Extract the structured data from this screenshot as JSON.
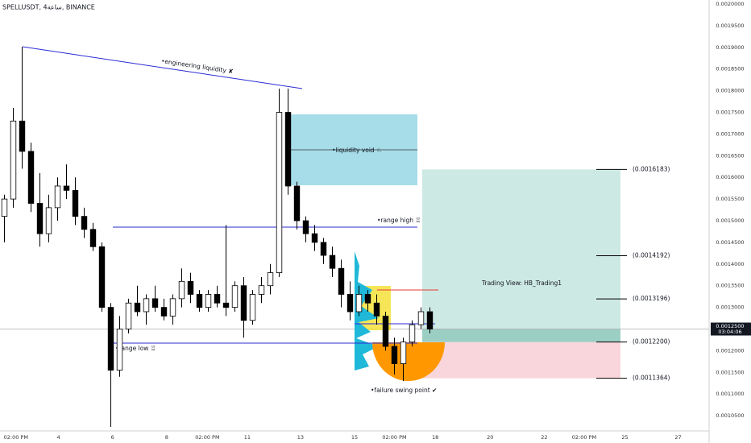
{
  "chart_data": {
    "type": "candlestick",
    "title": "SPELLUSDT, 4ساعة, BINANCE",
    "open": [
      0.00151,
      0.00155,
      0.00173,
      0.00166,
      0.00154,
      0.00147,
      0.00153,
      0.00158,
      0.00157,
      0.00151,
      0.00148,
      0.00144,
      0.0013,
      0.001155,
      0.00125,
      0.00131,
      0.00129,
      0.00132,
      0.0013,
      0.00128,
      0.00132,
      0.00136,
      0.00133,
      0.0013,
      0.00133,
      0.00131,
      0.0013,
      0.00135,
      0.00127,
      0.00133,
      0.00135,
      0.00138,
      0.00175,
      0.00158,
      0.0015,
      0.00147,
      0.00145,
      0.00142,
      0.00139,
      0.00133,
      0.00129,
      0.00133,
      0.00131,
      0.00128,
      0.00121,
      0.00117,
      0.00122,
      0.00126,
      0.00129
    ],
    "high": [
      0.00156,
      0.00176,
      0.0019015,
      0.00168,
      0.00161,
      0.00156,
      0.0016,
      0.00163,
      0.0016,
      0.00153,
      0.001495,
      0.00145,
      0.00131,
      0.00128,
      0.00132,
      0.00135,
      0.00133,
      0.00135,
      0.00132,
      0.00133,
      0.00139,
      0.00138,
      0.00134,
      0.00134,
      0.00135,
      0.00149,
      0.00136,
      0.00137,
      0.00134,
      0.00137,
      0.0014,
      0.0018048,
      0.0018048,
      0.00159,
      0.00151,
      0.00149,
      0.00146,
      0.00144,
      0.00141,
      0.00136,
      0.00135,
      0.00134,
      0.00133,
      0.00129,
      0.00123,
      0.00123,
      0.00127,
      0.0013,
      0.0013
    ],
    "low": [
      0.00145,
      0.00153,
      0.00162,
      0.00152,
      0.00144,
      0.00145,
      0.0015,
      0.00155,
      0.00149,
      0.00146,
      0.00143,
      0.00129,
      0.0010242,
      0.00114,
      0.00124,
      0.00128,
      0.00126,
      0.00129,
      0.00127,
      0.00126,
      0.0013,
      0.00131,
      0.00129,
      0.00129,
      0.0013,
      0.00128,
      0.00129,
      0.00123,
      0.00126,
      0.00131,
      0.00133,
      0.00137,
      0.00156,
      0.00148,
      0.00145,
      0.00143,
      0.0014,
      0.00137,
      0.0013,
      0.00127,
      0.00128,
      0.00129,
      0.00126,
      0.0012,
      0.001145,
      0.00113,
      0.00121,
      0.00125,
      0.00124
    ],
    "close": [
      0.00155,
      0.00173,
      0.00166,
      0.00154,
      0.00147,
      0.00153,
      0.00158,
      0.00157,
      0.00151,
      0.00148,
      0.00144,
      0.0013,
      0.001155,
      0.00125,
      0.00131,
      0.00129,
      0.00132,
      0.0013,
      0.00128,
      0.00132,
      0.00136,
      0.00133,
      0.0013,
      0.00133,
      0.00131,
      0.0013,
      0.00135,
      0.00127,
      0.00133,
      0.00135,
      0.00138,
      0.00175,
      0.00158,
      0.0015,
      0.00147,
      0.00145,
      0.00142,
      0.00139,
      0.00133,
      0.00129,
      0.00133,
      0.00131,
      0.00128,
      0.00121,
      0.00117,
      0.00122,
      0.00126,
      0.00129,
      0.00125
    ],
    "up_color": "#ffffff",
    "down_color": "#000000",
    "ylim": [
      0.0010149,
      0.0020093
    ],
    "yticks": [
      {
        "value": 0.002,
        "label": "0.0020000"
      },
      {
        "value": 0.00195,
        "label": "0.0019500"
      },
      {
        "value": 0.0019,
        "label": "0.0019000"
      },
      {
        "value": 0.00185,
        "label": "0.0018500"
      },
      {
        "value": 0.0018,
        "label": "0.0018000"
      },
      {
        "value": 0.00175,
        "label": "0.0017500"
      },
      {
        "value": 0.0017,
        "label": "0.0017000"
      },
      {
        "value": 0.00165,
        "label": "0.0016500"
      },
      {
        "value": 0.0016,
        "label": "0.0016000"
      },
      {
        "value": 0.00155,
        "label": "0.0015500"
      },
      {
        "value": 0.0015,
        "label": "0.0015000"
      },
      {
        "value": 0.00145,
        "label": "0.0014500"
      },
      {
        "value": 0.0014,
        "label": "0.0014000"
      },
      {
        "value": 0.00135,
        "label": "0.0013500"
      },
      {
        "value": 0.0013,
        "label": "0.0013000"
      },
      {
        "value": 0.00125,
        "label": "0.0012500"
      },
      {
        "value": 0.0012,
        "label": "0.0012000"
      },
      {
        "value": 0.00115,
        "label": "0.0011500"
      },
      {
        "value": 0.0011,
        "label": "0.0011000"
      },
      {
        "value": 0.00105,
        "label": "0.0010500"
      }
    ],
    "xlim": [
      0,
      80
    ],
    "xticks": [
      {
        "value": 1.8,
        "label": "02:00 PM"
      },
      {
        "value": 6.6,
        "label": "4"
      },
      {
        "value": 12.7,
        "label": "6"
      },
      {
        "value": 18.8,
        "label": "8"
      },
      {
        "value": 23.4,
        "label": "02:00 PM"
      },
      {
        "value": 27.9,
        "label": "11"
      },
      {
        "value": 33.9,
        "label": "13"
      },
      {
        "value": 40,
        "label": "15"
      },
      {
        "value": 44.5,
        "label": "02:00 PM"
      },
      {
        "value": 49.1,
        "label": "18"
      },
      {
        "value": 55.3,
        "label": "20"
      },
      {
        "value": 61.4,
        "label": "22"
      },
      {
        "value": 65.9,
        "label": "02:00 PM"
      },
      {
        "value": 70.5,
        "label": "25"
      },
      {
        "value": 76.5,
        "label": "27"
      }
    ],
    "grid": false,
    "last_price": {
      "value": 0.00125,
      "label": "0.0012500",
      "countdown": "03:04:06"
    },
    "levels": [
      {
        "value": 0.0016183,
        "label": "(0.0016183)"
      },
      {
        "value": 0.0014192,
        "label": "(0.0014192)"
      },
      {
        "value": 0.0013196,
        "label": "(0.0013196)"
      },
      {
        "value": 0.00122,
        "label": "(0.0012200)"
      },
      {
        "value": 0.0011364,
        "label": "(0.0011364)"
      }
    ],
    "annotations": {
      "engineering": "•engineering liquidity ✘",
      "void": "•liquidity void ♘",
      "range_high": "•range high ♖",
      "range_low": "•range low ♖",
      "failure": "•failure swing point ✔",
      "signature": "Trading View: HB_Trading1"
    }
  }
}
